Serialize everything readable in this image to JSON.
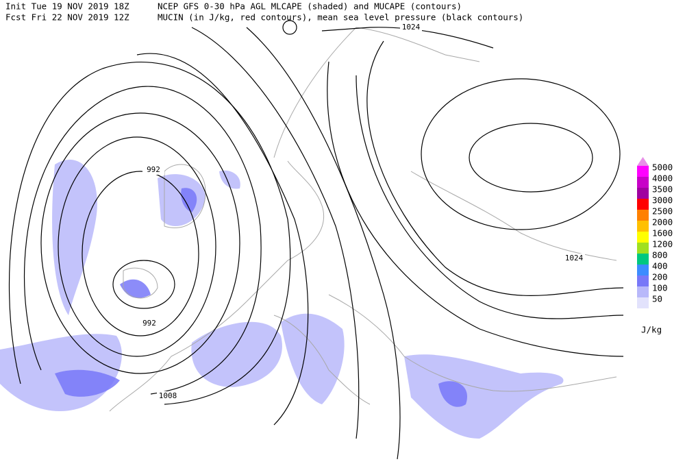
{
  "header": {
    "line1_left": "Init  Tue 19 NOV 2019 18Z",
    "line1_right": "NCEP GFS 0-30 hPa AGL MLCAPE (shaded) and MUCAPE (contours)",
    "line2_left": "Fcst Fri 22 NOV 2019 12Z",
    "line2_right": "MUCIN (in J/kg, red contours), mean sea level pressure (black contours)"
  },
  "contour_labels": [
    "1024",
    "992",
    "992",
    "1008",
    "1024"
  ],
  "legend": {
    "unit": "J/kg",
    "top_arrow_color": "#e890e8",
    "levels": [
      {
        "label": "5000",
        "color": "#ff00ff"
      },
      {
        "label": "4000",
        "color": "#c800c8"
      },
      {
        "label": "3500",
        "color": "#a000a0"
      },
      {
        "label": "3000",
        "color": "#ff0000"
      },
      {
        "label": "2500",
        "color": "#ff8000"
      },
      {
        "label": "2000",
        "color": "#ffc000"
      },
      {
        "label": "1600",
        "color": "#ffff00"
      },
      {
        "label": "1200",
        "color": "#a0e020"
      },
      {
        "label": "800",
        "color": "#00c880"
      },
      {
        "label": "400",
        "color": "#3c8cff"
      },
      {
        "label": "200",
        "color": "#7878f8"
      },
      {
        "label": "100",
        "color": "#b8b8fa"
      },
      {
        "label": "50",
        "color": "#e2e2fc"
      }
    ]
  }
}
